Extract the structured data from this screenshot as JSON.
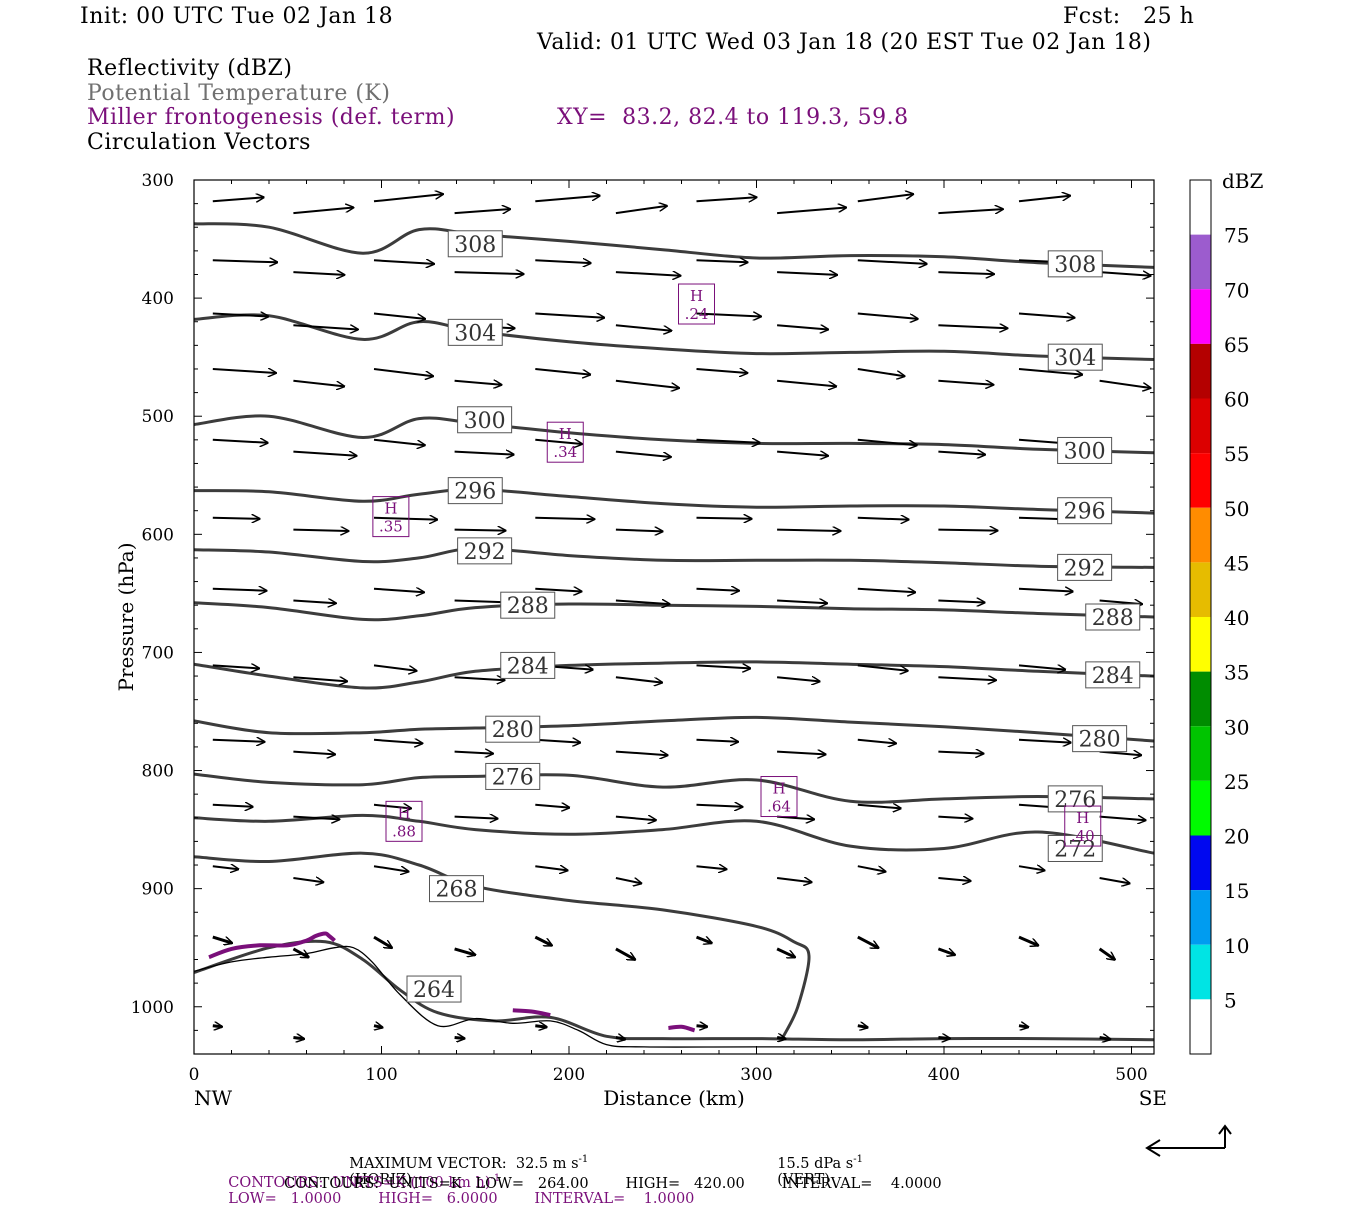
{
  "header": {
    "init": "Init: 00 UTC Tue 02 Jan 18",
    "fcst": "Fcst:   25 h",
    "valid": "Valid: 01 UTC Wed 03 Jan 18 (20 EST Tue 02 Jan 18)",
    "field1": "Reflectivity (dBZ)",
    "field2": "Potential Temperature (K)",
    "field3": "Miller frontogenesis (def. term)",
    "xy": "XY=  83.2, 82.4 to 119.3, 59.8",
    "field4": "Circulation Vectors"
  },
  "colors": {
    "theta": "#3c3c3c",
    "fronto": "#7a0f7a",
    "vector": "#000000"
  },
  "chart_data": {
    "type": "cross-section",
    "xlabel": "Distance (km)",
    "ylabel": "Pressure (hPa)",
    "x_ticks": [
      "0",
      "100",
      "200",
      "300",
      "400",
      "500"
    ],
    "y_ticks": [
      "300",
      "400",
      "500",
      "600",
      "700",
      "800",
      "900",
      "1000"
    ],
    "xlim": [
      0,
      512
    ],
    "ylim": [
      300,
      1040
    ],
    "left_end": "NW",
    "right_end": "SE",
    "theta_contours": [
      {
        "label": "308",
        "x": [
          0,
          40,
          90,
          120,
          150,
          200,
          250,
          300,
          350,
          400,
          450,
          512
        ],
        "p": [
          337,
          340,
          362,
          342,
          346,
          352,
          359,
          366,
          364,
          365,
          370,
          374
        ],
        "labels_at": [
          [
            150,
            354
          ],
          [
            470,
            371
          ]
        ]
      },
      {
        "label": "304",
        "x": [
          0,
          40,
          90,
          120,
          150,
          200,
          250,
          300,
          350,
          400,
          450,
          512
        ],
        "p": [
          418,
          415,
          435,
          420,
          428,
          437,
          443,
          447,
          446,
          445,
          449,
          452
        ],
        "labels_at": [
          [
            150,
            429
          ],
          [
            470,
            450
          ]
        ]
      },
      {
        "label": "300",
        "x": [
          0,
          40,
          90,
          120,
          150,
          200,
          250,
          300,
          350,
          400,
          450,
          512
        ],
        "p": [
          507,
          500,
          518,
          502,
          506,
          514,
          520,
          523,
          523,
          524,
          528,
          531
        ],
        "labels_at": [
          [
            155,
            503
          ],
          [
            475,
            529
          ]
        ]
      },
      {
        "label": "296",
        "x": [
          0,
          40,
          90,
          120,
          150,
          200,
          250,
          300,
          350,
          400,
          450,
          512
        ],
        "p": [
          563,
          564,
          572,
          566,
          562,
          568,
          574,
          577,
          576,
          576,
          579,
          582
        ],
        "labels_at": [
          [
            150,
            563
          ],
          [
            475,
            580
          ]
        ]
      },
      {
        "label": "292",
        "x": [
          0,
          40,
          90,
          120,
          150,
          200,
          250,
          300,
          350,
          400,
          450,
          512
        ],
        "p": [
          613,
          615,
          623,
          620,
          612,
          618,
          622,
          622,
          622,
          624,
          627,
          628
        ],
        "labels_at": [
          [
            155,
            614
          ],
          [
            475,
            628
          ]
        ]
      },
      {
        "label": "288",
        "x": [
          0,
          40,
          90,
          120,
          150,
          200,
          250,
          300,
          350,
          400,
          450,
          512
        ],
        "p": [
          658,
          662,
          672,
          669,
          662,
          659,
          660,
          661,
          663,
          664,
          667,
          670
        ],
        "labels_at": [
          [
            178,
            660
          ],
          [
            490,
            670
          ]
        ]
      },
      {
        "label": "284",
        "x": [
          0,
          40,
          90,
          120,
          150,
          200,
          250,
          300,
          350,
          400,
          450,
          512
        ],
        "p": [
          710,
          720,
          730,
          725,
          716,
          711,
          709,
          708,
          710,
          712,
          716,
          720
        ],
        "labels_at": [
          [
            178,
            711
          ],
          [
            490,
            719
          ]
        ]
      },
      {
        "label": "280",
        "x": [
          0,
          40,
          90,
          120,
          150,
          200,
          250,
          300,
          350,
          400,
          450,
          512
        ],
        "p": [
          758,
          768,
          768,
          765,
          764,
          762,
          758,
          755,
          759,
          763,
          768,
          775
        ],
        "labels_at": [
          [
            170,
            765
          ],
          [
            483,
            773
          ]
        ]
      },
      {
        "label": "276",
        "x": [
          0,
          40,
          90,
          120,
          150,
          200,
          250,
          300,
          350,
          400,
          450,
          512
        ],
        "p": [
          803,
          810,
          812,
          806,
          805,
          804,
          814,
          808,
          826,
          824,
          822,
          824
        ],
        "labels_at": [
          [
            170,
            805
          ],
          [
            470,
            824
          ]
        ]
      },
      {
        "label": "272",
        "x": [
          0,
          40,
          90,
          120,
          150,
          200,
          250,
          300,
          350,
          400,
          450,
          512
        ],
        "p": [
          840,
          843,
          838,
          843,
          850,
          854,
          850,
          843,
          864,
          866,
          852,
          870
        ],
        "labels_at": [
          [
            470,
            866
          ]
        ]
      },
      {
        "label": "268",
        "x": [
          0,
          40,
          90,
          120,
          150,
          200,
          250,
          300,
          320,
          328,
          322,
          314
        ],
        "p": [
          873,
          877,
          870,
          880,
          898,
          910,
          918,
          932,
          945,
          957,
          1000,
          1026
        ],
        "labels_at": [
          [
            140,
            900
          ]
        ]
      },
      {
        "label": "264",
        "x": [
          0,
          40,
          70,
          90,
          110,
          130,
          160,
          190,
          220,
          250,
          300,
          350,
          400,
          450,
          512
        ],
        "p": [
          971,
          950,
          945,
          960,
          986,
          1005,
          1012,
          1009,
          1025,
          1027,
          1027,
          1028,
          1027,
          1027,
          1028
        ],
        "labels_at": [
          [
            128,
            985
          ]
        ]
      }
    ],
    "terrain": {
      "x": [
        0,
        20,
        40,
        60,
        75,
        85,
        95,
        110,
        130,
        150,
        170,
        190,
        205,
        220,
        240,
        300,
        400,
        512
      ],
      "p": [
        970,
        962,
        958,
        955,
        950,
        950,
        962,
        990,
        1016,
        1010,
        1014,
        1012,
        1020,
        1032,
        1034,
        1034,
        1034,
        1034
      ]
    },
    "fronto_maxima": [
      {
        "label": "H",
        "value": ".24",
        "x": 268,
        "p": 405
      },
      {
        "label": "H",
        "value": ".34",
        "x": 198,
        "p": 522
      },
      {
        "label": "H",
        "value": ".35",
        "x": 105,
        "p": 585
      },
      {
        "label": "H",
        "value": ".64",
        "x": 312,
        "p": 822
      },
      {
        "label": "H",
        "value": ".88",
        "x": 112,
        "p": 843
      },
      {
        "label": "H",
        "value": ".40",
        "x": 474,
        "p": 847
      }
    ],
    "fronto_contours": [
      {
        "x": [
          8,
          20,
          35,
          50,
          60,
          65,
          70,
          72,
          75
        ],
        "p": [
          958,
          951,
          948,
          948,
          944,
          940,
          938,
          940,
          944
        ]
      },
      {
        "x": [
          170,
          180,
          190
        ],
        "p": [
          1003,
          1004,
          1007
        ]
      },
      {
        "x": [
          253,
          260,
          267
        ],
        "p": [
          1018,
          1017,
          1020
        ]
      }
    ],
    "colorbar": {
      "title": "dBZ",
      "labels": [
        "5",
        "10",
        "15",
        "20",
        "25",
        "30",
        "35",
        "40",
        "45",
        "50",
        "55",
        "60",
        "65",
        "70",
        "75"
      ],
      "colors": [
        "#ffffff",
        "#00e4e4",
        "#009cf0",
        "#0008f0",
        "#00fb00",
        "#00c400",
        "#008c00",
        "#ffff00",
        "#e6bc00",
        "#ff8c00",
        "#ff0000",
        "#dc0000",
        "#b40000",
        "#ff00ff",
        "#9c5cce",
        "#ffffff"
      ]
    },
    "vector_rows": [
      {
        "p": 322,
        "n": 12,
        "dx": 60,
        "dp": -4
      },
      {
        "p": 372,
        "n": 12,
        "dx": 60,
        "dp": 2
      },
      {
        "p": 417,
        "n": 12,
        "dx": 60,
        "dp": 3
      },
      {
        "p": 464,
        "n": 12,
        "dx": 55,
        "dp": 4
      },
      {
        "p": 524,
        "n": 12,
        "dx": 55,
        "dp": 3
      },
      {
        "p": 590,
        "n": 12,
        "dx": 55,
        "dp": 1
      },
      {
        "p": 650,
        "n": 12,
        "dx": 50,
        "dp": 2
      },
      {
        "p": 715,
        "n": 12,
        "dx": 50,
        "dp": 3
      },
      {
        "p": 778,
        "n": 12,
        "dx": 45,
        "dp": 2
      },
      {
        "p": 833,
        "n": 12,
        "dx": 40,
        "dp": 2
      },
      {
        "p": 885,
        "n": 12,
        "dx": 30,
        "dp": 3
      },
      {
        "p": 945,
        "n": 12,
        "dx": 18,
        "dp": 6
      },
      {
        "p": 1020,
        "n": 12,
        "dx": 10,
        "dp": 1
      }
    ]
  },
  "footer": {
    "max_vector": "MAXIMUM VECTOR:  32.5 m s",
    "max_vector_vert": "15.5 dPa s",
    "horiz_tag": "(HORIZ)",
    "vert_tag": "(VERT)",
    "exp": "-1",
    "contours1_a": "CONTOURS:  UNITS=K (100 km h)",
    "contours1_b": "LOW=   1.0000        HIGH=   6.0000        INTERVAL=    1.0000",
    "contours2": "CONTOURS:  UNITS=K   LOW=   264.00        HIGH=   420.00        INTERVAL=    4.0000"
  }
}
